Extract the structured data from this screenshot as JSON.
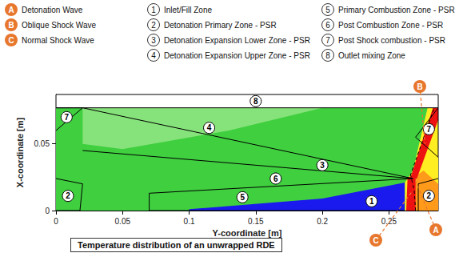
{
  "chart_data": {
    "type": "zone_map",
    "title": "Temperature distribution of an unwrapped RDE",
    "x_label": "Y-coordinate [m]",
    "y_label": "X-coordinate [m]",
    "xlim": [
      0,
      0.287
    ],
    "xticks": [
      0,
      0.05,
      0.1,
      0.15,
      0.2,
      0.25
    ],
    "ylim": [
      0,
      0.087
    ],
    "yticks": [
      0,
      0.05
    ],
    "waves": [
      {
        "id": "A",
        "label": "Detonation Wave"
      },
      {
        "id": "B",
        "label": "Oblique Shock Wave"
      },
      {
        "id": "C",
        "label": "Normal Shock Wave"
      }
    ],
    "zones": [
      {
        "id": "1",
        "label": "Inlet/Fill Zone"
      },
      {
        "id": "2",
        "label": "Detonation Primary Zone - PSR"
      },
      {
        "id": "3",
        "label": "Detonation Expansion Lower Zone - PSR"
      },
      {
        "id": "4",
        "label": "Detonation Expansion Upper Zone - PSR"
      },
      {
        "id": "5",
        "label": "Primary Combustion Zone - PSR"
      },
      {
        "id": "6",
        "label": "Post Combustion Zone - PSR"
      },
      {
        "id": "7",
        "label": "Post Shock combustion - PSR"
      },
      {
        "id": "8",
        "label": "Outlet mixing Zone"
      }
    ]
  }
}
